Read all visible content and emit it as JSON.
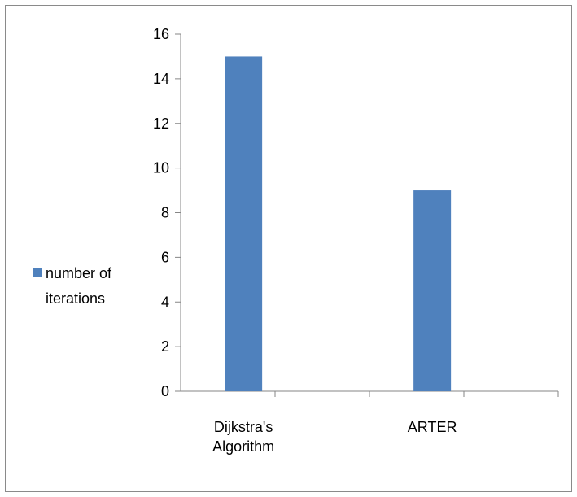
{
  "chart_data": {
    "type": "bar",
    "categories": [
      [
        "Dijkstra's",
        "Algorithm"
      ],
      [
        "ARTER"
      ]
    ],
    "series": [
      {
        "name": "number of iterations",
        "legend_lines": [
          "number of",
          "iterations"
        ],
        "values": [
          15,
          9
        ],
        "color": "#4f81bd"
      }
    ],
    "ylim": [
      0,
      16
    ],
    "yticks": [
      0,
      2,
      4,
      6,
      8,
      10,
      12,
      14,
      16
    ],
    "grid": false,
    "legend_position": "left"
  }
}
